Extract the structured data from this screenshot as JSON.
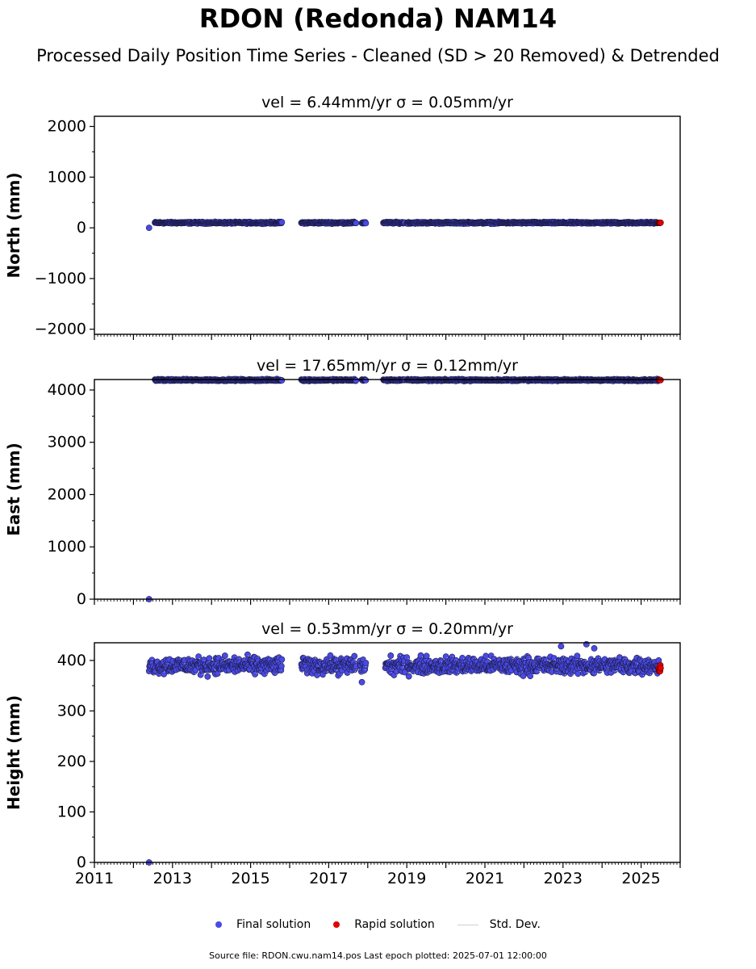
{
  "title": "RDON (Redonda) NAM14",
  "subtitle": "Processed Daily Position Time Series - Cleaned (SD > 20 Removed) & Detrended",
  "source_note": "Source file: RDON.cwu.nam14.pos  Last epoch plotted: 2025-07-01 12:00:00",
  "legend": [
    {
      "label": "Final solution",
      "color": "#4a4ae6"
    },
    {
      "label": "Rapid solution",
      "color": "#e00000"
    },
    {
      "label": "Std. Dev.",
      "color": "#cfcfcf"
    }
  ],
  "chart_data": [
    {
      "type": "scatter",
      "panel_title": "vel = 6.44mm/yr   σ = 0.05mm/yr",
      "ylabel": "North (mm)",
      "xlim": [
        2011,
        2026
      ],
      "ylim": [
        -2100,
        2200
      ],
      "yticks": [
        -2000,
        -1000,
        0,
        1000,
        2000
      ],
      "ytick_labels": [
        "−2000",
        "−1000",
        "0",
        "1000",
        "2000"
      ],
      "baseline": 100,
      "spread": 8,
      "segments": [
        [
          2012.55,
          2015.8
        ],
        [
          2016.3,
          2017.7
        ],
        [
          2017.85,
          2017.95
        ],
        [
          2018.4,
          2018.95
        ],
        [
          2019.0,
          2025.45
        ]
      ],
      "outliers": [
        {
          "x": 2012.4,
          "y": 0
        }
      ],
      "rapid": {
        "x_range": [
          2025.45,
          2025.5
        ],
        "y": 100
      }
    },
    {
      "type": "scatter",
      "panel_title": "vel = 17.65mm/yr   σ = 0.12mm/yr",
      "ylabel": "East (mm)",
      "xlim": [
        2011,
        2026
      ],
      "ylim": [
        0,
        4200
      ],
      "yticks": [
        0,
        1000,
        2000,
        3000,
        4000
      ],
      "ytick_labels": [
        "0",
        "1000",
        "2000",
        "3000",
        "4000"
      ],
      "baseline": 4190,
      "spread": 8,
      "segments": [
        [
          2012.55,
          2015.8
        ],
        [
          2016.3,
          2017.7
        ],
        [
          2017.85,
          2017.95
        ],
        [
          2018.4,
          2018.95
        ],
        [
          2019.0,
          2025.45
        ]
      ],
      "outliers": [
        {
          "x": 2012.4,
          "y": 0
        }
      ],
      "rapid": {
        "x_range": [
          2025.45,
          2025.5
        ],
        "y": 4190
      }
    },
    {
      "type": "scatter",
      "panel_title": "vel = 0.53mm/yr   σ = 0.20mm/yr",
      "ylabel": "Height (mm)",
      "xlim": [
        2011,
        2026
      ],
      "ylim": [
        0,
        435
      ],
      "yticks": [
        0,
        100,
        200,
        300,
        400
      ],
      "ytick_labels": [
        "0",
        "100",
        "200",
        "300",
        "400"
      ],
      "baseline": 390,
      "spread": 8,
      "segments": [
        [
          2012.4,
          2015.8
        ],
        [
          2016.3,
          2017.7
        ],
        [
          2017.8,
          2017.95
        ],
        [
          2018.45,
          2018.95
        ],
        [
          2019.0,
          2025.45
        ]
      ],
      "outliers": [
        {
          "x": 2012.4,
          "y": 0
        },
        {
          "x": 2017.85,
          "y": 357
        },
        {
          "x": 2022.95,
          "y": 428
        },
        {
          "x": 2023.6,
          "y": 432
        },
        {
          "x": 2023.8,
          "y": 424
        }
      ],
      "rapid": {
        "x_range": [
          2025.45,
          2025.5
        ],
        "y": 383
      }
    }
  ],
  "xticks": [
    2011,
    2013,
    2015,
    2017,
    2019,
    2021,
    2023,
    2025
  ]
}
